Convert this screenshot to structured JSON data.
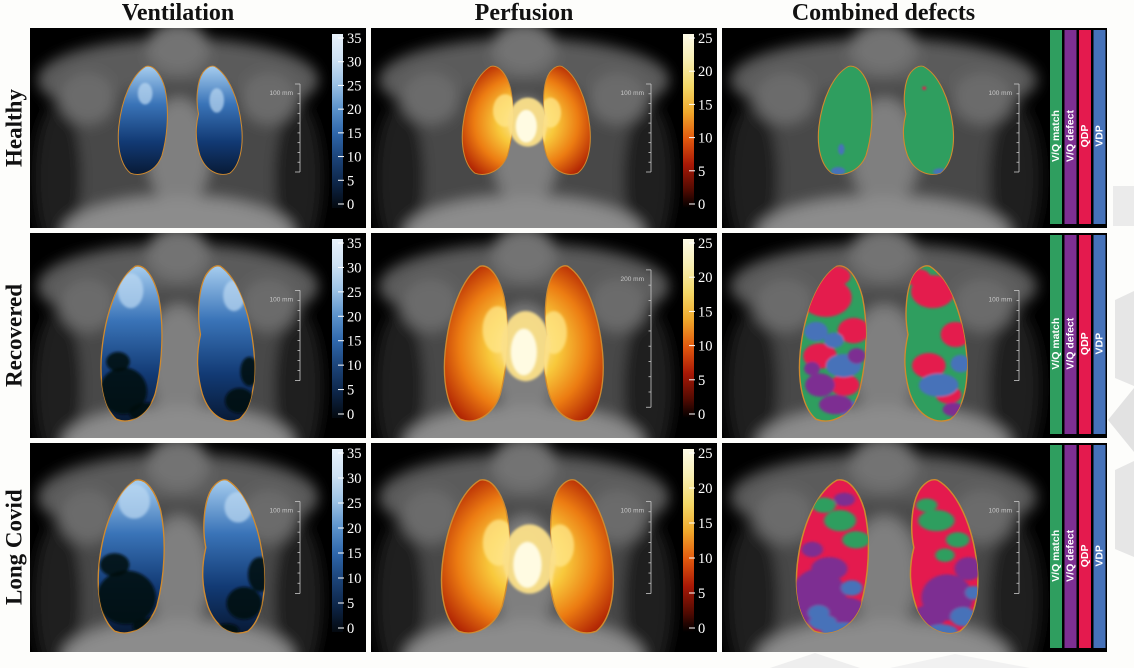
{
  "figure": {
    "columns": [
      {
        "id": "ventilation",
        "label": "Ventilation"
      },
      {
        "id": "perfusion",
        "label": "Perfusion"
      },
      {
        "id": "combined",
        "label": "Combined defects"
      }
    ],
    "rows": [
      {
        "id": "healthy",
        "label": "Healthy"
      },
      {
        "id": "recovered",
        "label": "Recovered"
      },
      {
        "id": "long_covid",
        "label": "Long Covid"
      }
    ]
  },
  "colorbars": {
    "ventilation": {
      "ticks": [
        "35",
        "30",
        "25",
        "20",
        "15",
        "10",
        "5",
        "0"
      ]
    },
    "perfusion": {
      "ticks": [
        "25",
        "20",
        "15",
        "10",
        "5",
        "0"
      ]
    }
  },
  "legend": {
    "items": [
      {
        "id": "vq_match",
        "label": "V/Q match",
        "color": "#2f9e5f"
      },
      {
        "id": "vq_defect",
        "label": "V/Q defect",
        "color": "#7d2f92"
      },
      {
        "id": "qdp",
        "label": "QDP",
        "color": "#e41a4e"
      },
      {
        "id": "vdp",
        "label": "VDP",
        "color": "#4672b9"
      }
    ]
  },
  "panels": {
    "healthy": {
      "ventilation": {
        "scale_label": "100 mm"
      },
      "perfusion": {
        "scale_label": "100 mm"
      },
      "combined": {
        "scale_label": "100 mm"
      }
    },
    "recovered": {
      "ventilation": {
        "scale_label": "100 mm"
      },
      "perfusion": {
        "scale_label": "200 mm"
      },
      "combined": {
        "scale_label": "100 mm"
      }
    },
    "long_covid": {
      "ventilation": {
        "scale_label": "100 mm"
      },
      "perfusion": {
        "scale_label": "100 mm"
      },
      "combined": {
        "scale_label": "100 mm"
      }
    }
  },
  "colors": {
    "panel_background": "#000000",
    "lung_outline": "#cf8a2f",
    "tick_text": "#ffffff",
    "scale_text": "#c8c8c8"
  }
}
